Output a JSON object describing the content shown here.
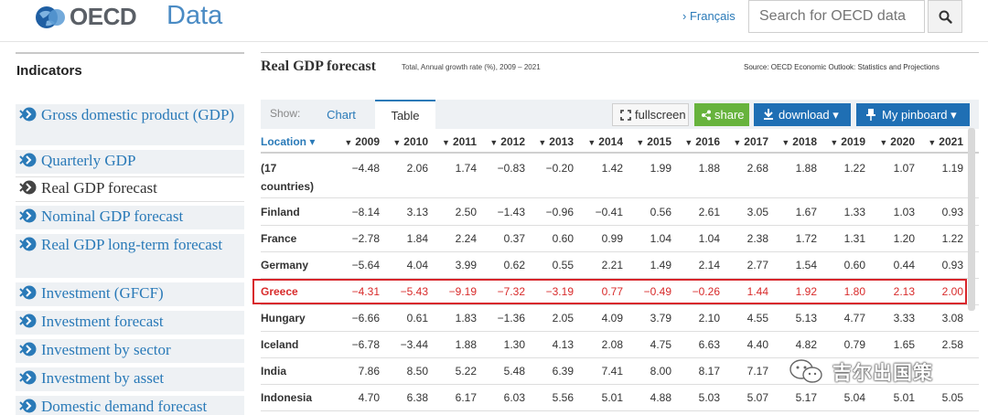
{
  "header": {
    "logo_text": "OECD",
    "logo_product": "Data",
    "language_link": "› Français",
    "search_placeholder": "Search for OECD data"
  },
  "sidebar": {
    "title": "Indicators",
    "items": [
      {
        "label": "Gross domestic product (GDP)",
        "active": false
      },
      {
        "label": "Quarterly GDP",
        "active": false
      },
      {
        "label": "Real GDP forecast",
        "active": true
      },
      {
        "label": "Nominal GDP forecast",
        "active": false
      },
      {
        "label": "Real GDP long-term forecast",
        "active": false
      },
      {
        "label": "Investment (GFCF)",
        "active": false
      },
      {
        "label": "Investment forecast",
        "active": false
      },
      {
        "label": "Investment by sector",
        "active": false
      },
      {
        "label": "Investment by asset",
        "active": false
      },
      {
        "label": "Domestic demand forecast",
        "active": false
      }
    ]
  },
  "main": {
    "title": "Real GDP forecast",
    "subtitle": "Total, Annual growth rate (%), 2009 – 2021",
    "source": "Source: OECD Economic Outlook: Statistics and Projections"
  },
  "toolbar": {
    "show_label": "Show:",
    "tab_chart": "Chart",
    "tab_table": "Table",
    "fullscreen": "fullscreen",
    "share": "share",
    "download": "download ▾",
    "pinboard": "My pinboard ▾"
  },
  "table": {
    "location_header": "Location ▾",
    "years": [
      "2009",
      "2010",
      "2011",
      "2012",
      "2013",
      "2014",
      "2015",
      "2016",
      "2017",
      "2018",
      "2019",
      "2020",
      "2021"
    ],
    "rows": [
      {
        "name": "(17 countries)",
        "values": [
          "-4.48",
          "2.06",
          "1.74",
          "-0.83",
          "-0.20",
          "1.42",
          "1.99",
          "1.88",
          "2.68",
          "1.88",
          "1.22",
          "1.07",
          "1.19"
        ]
      },
      {
        "name": "Finland",
        "values": [
          "-8.14",
          "3.13",
          "2.50",
          "-1.43",
          "-0.96",
          "-0.41",
          "0.56",
          "2.61",
          "3.05",
          "1.67",
          "1.33",
          "1.03",
          "0.93"
        ]
      },
      {
        "name": "France",
        "values": [
          "-2.78",
          "1.84",
          "2.24",
          "0.37",
          "0.60",
          "0.99",
          "1.04",
          "1.04",
          "2.38",
          "1.72",
          "1.31",
          "1.20",
          "1.22"
        ]
      },
      {
        "name": "Germany",
        "values": [
          "-5.64",
          "4.04",
          "3.99",
          "0.62",
          "0.55",
          "2.21",
          "1.49",
          "2.14",
          "2.77",
          "1.54",
          "0.60",
          "0.44",
          "0.93"
        ]
      },
      {
        "name": "Greece",
        "values": [
          "-4.31",
          "-5.43",
          "-9.19",
          "-7.32",
          "-3.19",
          "0.77",
          "-0.49",
          "-0.26",
          "1.44",
          "1.92",
          "1.80",
          "2.13",
          "2.00"
        ]
      },
      {
        "name": "Hungary",
        "values": [
          "-6.66",
          "0.61",
          "1.83",
          "-1.36",
          "2.05",
          "4.09",
          "3.79",
          "2.10",
          "4.55",
          "5.13",
          "4.77",
          "3.33",
          "3.08"
        ]
      },
      {
        "name": "Iceland",
        "values": [
          "-6.78",
          "-3.44",
          "1.88",
          "1.30",
          "4.13",
          "2.08",
          "4.75",
          "6.63",
          "4.40",
          "4.82",
          "0.79",
          "1.65",
          "2.58"
        ]
      },
      {
        "name": "India",
        "values": [
          "7.86",
          "8.50",
          "5.22",
          "5.48",
          "6.39",
          "7.41",
          "8.00",
          "8.17",
          "7.17",
          "",
          "",
          "",
          ""
        ]
      },
      {
        "name": "Indonesia",
        "values": [
          "4.70",
          "6.38",
          "6.17",
          "6.03",
          "5.56",
          "5.01",
          "4.88",
          "5.03",
          "5.07",
          "5.17",
          "5.04",
          "5.01",
          "5.05"
        ]
      }
    ],
    "highlighted_row": "Greece"
  },
  "watermark": {
    "text": "吉尔出国策"
  },
  "colors": {
    "link_blue": "#2a7ab8",
    "highlight_red": "#d82b2b",
    "share_green": "#67b33d",
    "button_blue": "#1f6fb4"
  }
}
